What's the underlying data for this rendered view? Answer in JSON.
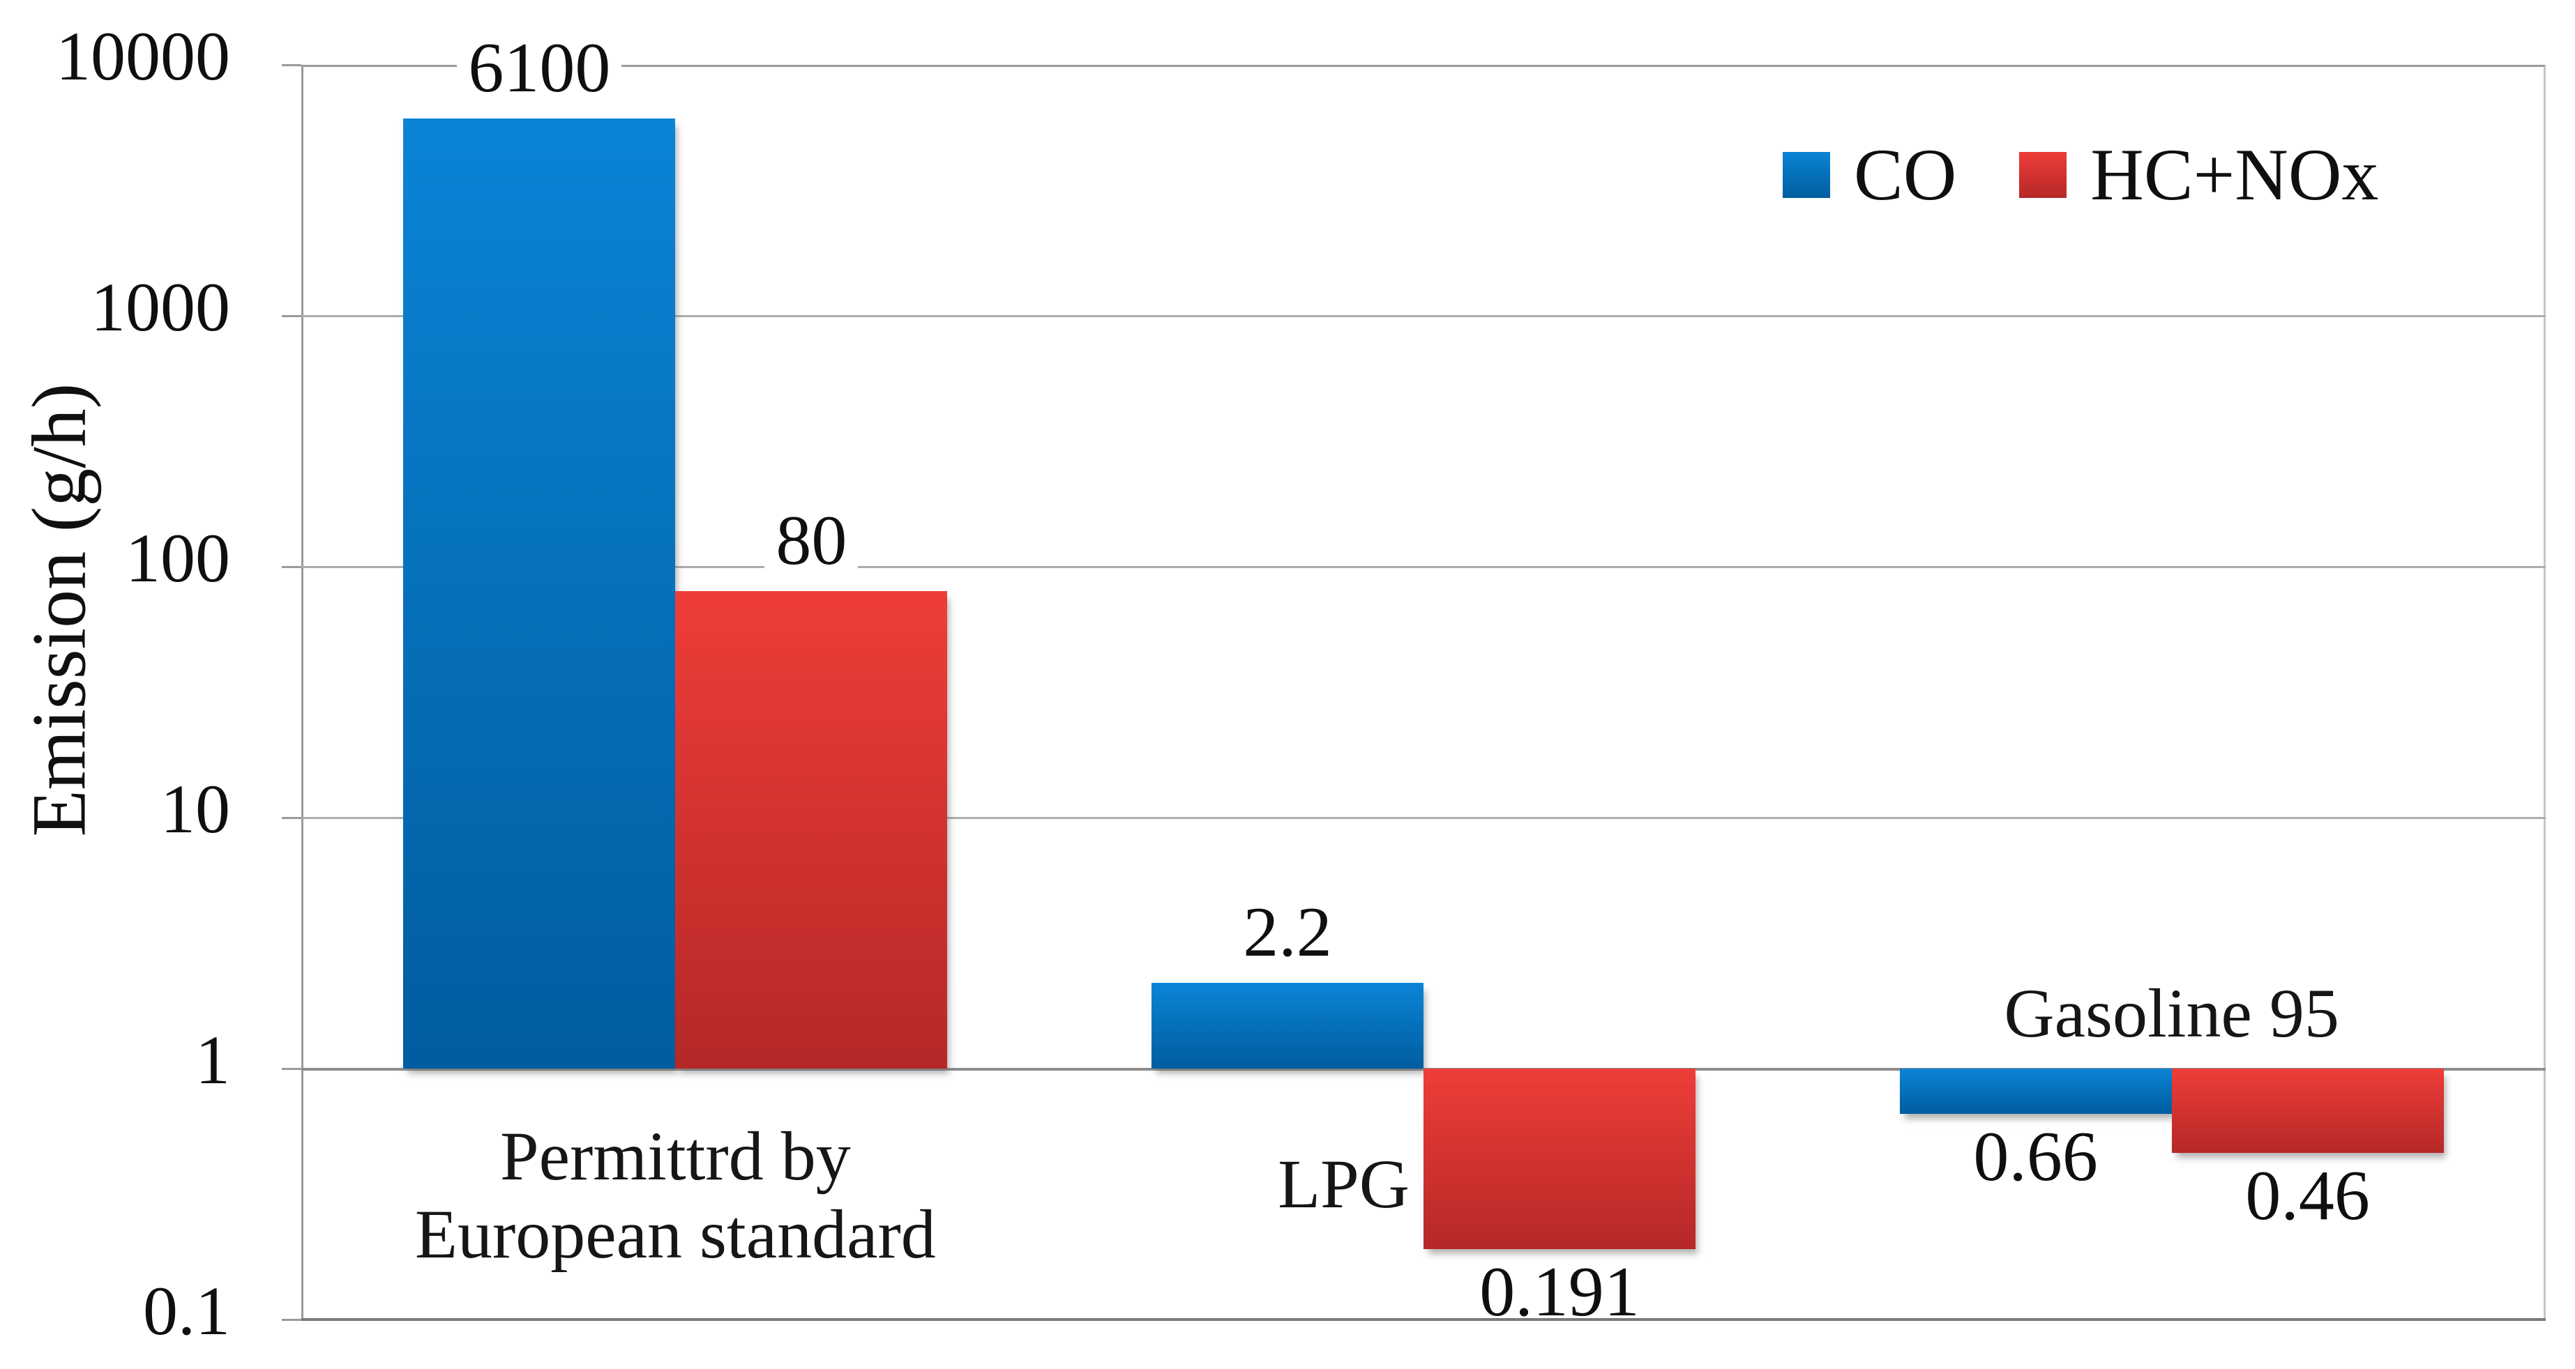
{
  "chart_data": {
    "type": "bar",
    "title": "",
    "xlabel": "",
    "ylabel": "Emission (g/h)",
    "log_scale": true,
    "ylim": [
      0.1,
      10000
    ],
    "baseline": 1,
    "grid": true,
    "legend_position": "top-right",
    "y_ticks": [
      {
        "value": 10000,
        "label": "10000"
      },
      {
        "value": 1000,
        "label": "1000"
      },
      {
        "value": 100,
        "label": "100"
      },
      {
        "value": 10,
        "label": "10"
      },
      {
        "value": 1,
        "label": "1"
      },
      {
        "value": 0.1,
        "label": "0.1"
      }
    ],
    "categories": [
      {
        "label": "Permittrd by European standard",
        "label_lines": [
          "Permittrd by",
          "European standard"
        ],
        "label_position": "below-center"
      },
      {
        "label": "LPG",
        "label_lines": [
          "LPG"
        ],
        "label_position": "left-of-negative-bar"
      },
      {
        "label": "Gasoline 95",
        "label_lines": [
          "Gasoline 95"
        ],
        "label_position": "above-center"
      }
    ],
    "series": [
      {
        "name": "CO",
        "color_top": "#0b84d6",
        "color_bottom": "#005d9f",
        "values": [
          6100,
          2.2,
          0.66
        ],
        "labels": [
          "6100",
          "2.2",
          "0.66"
        ]
      },
      {
        "name": "HC+NOx",
        "color_top": "#ee3d39",
        "color_bottom": "#b52827",
        "values": [
          80,
          0.191,
          0.46
        ],
        "labels": [
          "80",
          "0.191",
          "0.46"
        ]
      }
    ],
    "colors": {
      "gridline": "#acacac",
      "axis_line": "#7a7a7a",
      "text": "#0f0f0f"
    }
  }
}
